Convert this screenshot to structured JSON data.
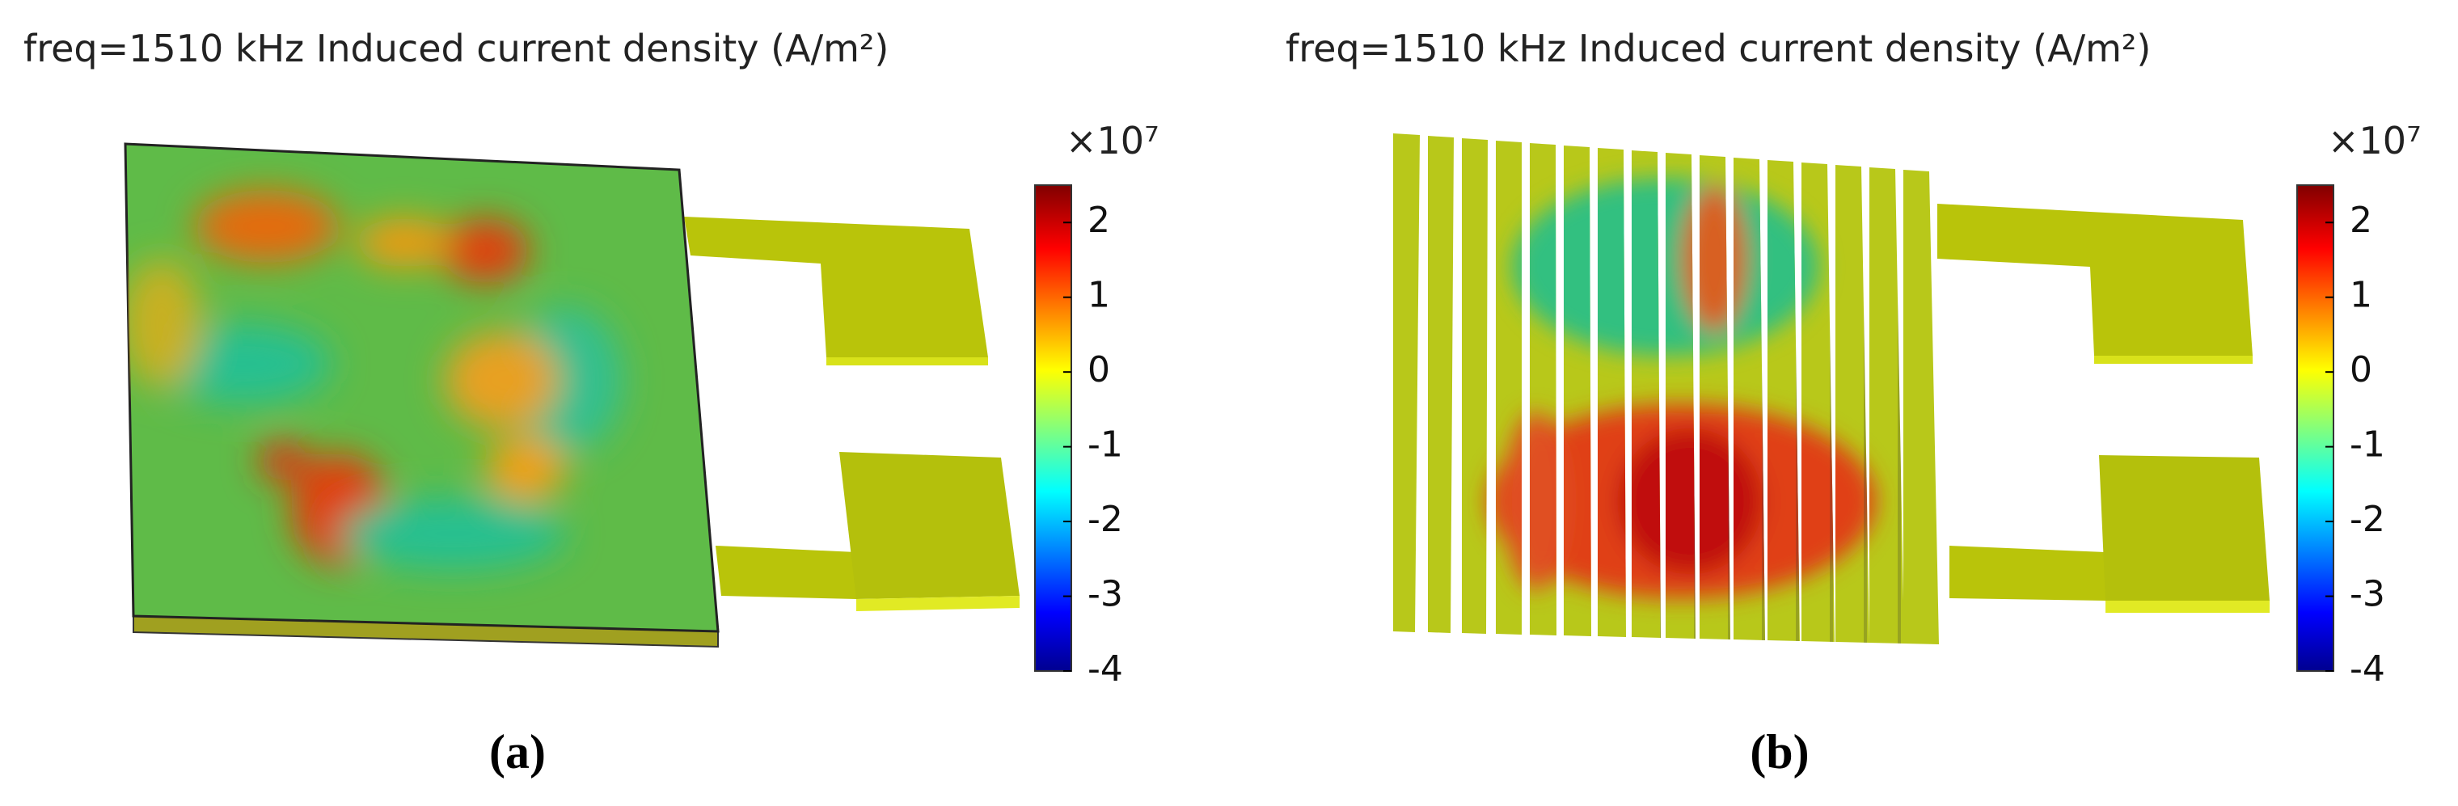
{
  "panels": [
    {
      "title": "freq=1510 kHz  Induced current density (A/m²)",
      "colorbar": {
        "multiplier": "×10⁷",
        "range": [
          -4,
          2.5
        ],
        "ticks": [
          -4,
          -3,
          -2,
          -1,
          0,
          1,
          2
        ]
      },
      "label": "(a)"
    },
    {
      "title": "freq=1510 kHz  Induced current density (A/m²)",
      "colorbar": {
        "multiplier": "×10⁷",
        "range": [
          -4,
          2.5
        ],
        "ticks": [
          -4,
          -3,
          -2,
          -1,
          0,
          1,
          2
        ]
      },
      "label": "(b)"
    }
  ]
}
